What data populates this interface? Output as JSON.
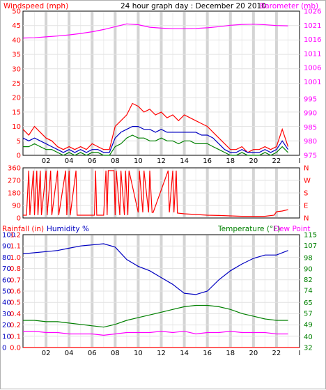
{
  "colors": {
    "background": "#ffffff",
    "plot_bg": "#ffffff",
    "gridline": "#d8d8d8",
    "axis": "#000000",
    "wind_red": "#ff0000",
    "wind_blue": "#0000c0",
    "wind_green": "#008000",
    "barometer": "#ff00ff",
    "direction": "#ff0000",
    "rain": "#ff0000",
    "humidity": "#0000c0",
    "temperature": "#008000",
    "dewpoint": "#ff00ff"
  },
  "panel1": {
    "title": "24 hour graph day : December 20 2010",
    "left_label": "Windspeed (mph)",
    "right_label": "Barometer (mb)"
  },
  "panel3": {
    "left_label_rain": "Rainfall (in)",
    "left_label_humidity": "Humidity %",
    "right_label_temp": "Temperature (°F)",
    "right_label_dew": "Dew Point"
  },
  "chart_data": [
    {
      "type": "line",
      "panel": "wind-barometer",
      "title": "24 hour graph day : December 20 2010",
      "ylabel": "Windspeed (mph)",
      "y2label": "Barometer (mb)",
      "x_ticks": [
        "02",
        "04",
        "06",
        "08",
        "10",
        "12",
        "14",
        "16",
        "18",
        "20",
        "22",
        "I"
      ],
      "y_ticks": [
        0,
        5,
        10,
        15,
        20,
        25,
        30,
        35,
        40,
        45,
        50
      ],
      "y2_ticks": [
        975,
        980,
        985,
        990,
        995,
        1001,
        1006,
        1011,
        1016,
        1021,
        1026
      ],
      "ylim": [
        0,
        50
      ],
      "y2lim": [
        975,
        1026
      ],
      "xlim": [
        0,
        24
      ],
      "grid": true,
      "series": [
        {
          "axis": "left",
          "color": "#ff0000",
          "x": [
            0,
            0.5,
            1,
            1.5,
            2,
            2.5,
            3,
            3.5,
            4,
            4.5,
            5,
            5.5,
            6,
            6.5,
            7,
            7.5,
            8,
            8.5,
            9,
            9.5,
            10,
            10.5,
            11,
            11.5,
            12,
            12.5,
            13,
            13.5,
            14,
            14.5,
            15,
            15.5,
            16,
            16.5,
            17,
            17.5,
            18,
            18.5,
            19,
            19.5,
            20,
            20.5,
            21,
            21.5,
            22,
            22.5,
            23
          ],
          "values": [
            9,
            7,
            10,
            8,
            6,
            5,
            3,
            2,
            3,
            2,
            3,
            2,
            4,
            3,
            2,
            2,
            10,
            12,
            14,
            18,
            17,
            15,
            16,
            14,
            15,
            13,
            14,
            12,
            14,
            13,
            12,
            11,
            10,
            8,
            6,
            4,
            2,
            2,
            3,
            1,
            2,
            2,
            3,
            2,
            3,
            9,
            3
          ]
        },
        {
          "axis": "left",
          "color": "#0000c0",
          "x": [
            0,
            0.5,
            1,
            1.5,
            2,
            2.5,
            3,
            3.5,
            4,
            4.5,
            5,
            5.5,
            6,
            6.5,
            7,
            7.5,
            8,
            8.5,
            9,
            9.5,
            10,
            10.5,
            11,
            11.5,
            12,
            12.5,
            13,
            13.5,
            14,
            14.5,
            15,
            15.5,
            16,
            16.5,
            17,
            17.5,
            18,
            18.5,
            19,
            19.5,
            20,
            20.5,
            21,
            21.5,
            22,
            22.5,
            23
          ],
          "values": [
            6,
            5,
            6,
            5,
            4,
            3,
            2,
            1,
            2,
            1,
            2,
            1,
            2,
            2,
            1,
            1,
            6,
            8,
            9,
            10,
            10,
            9,
            9,
            8,
            9,
            8,
            8,
            8,
            8,
            8,
            8,
            7,
            7,
            6,
            4,
            2,
            1,
            1,
            2,
            1,
            1,
            1,
            2,
            1,
            2,
            5,
            2
          ]
        },
        {
          "axis": "left",
          "color": "#008000",
          "x": [
            0,
            0.5,
            1,
            1.5,
            2,
            2.5,
            3,
            3.5,
            4,
            4.5,
            5,
            5.5,
            6,
            6.5,
            7,
            7.5,
            8,
            8.5,
            9,
            9.5,
            10,
            10.5,
            11,
            11.5,
            12,
            12.5,
            13,
            13.5,
            14,
            14.5,
            15,
            15.5,
            16,
            16.5,
            17,
            17.5,
            18,
            18.5,
            19,
            19.5,
            20,
            20.5,
            21,
            21.5,
            22,
            22.5,
            23
          ],
          "values": [
            3,
            3,
            4,
            3,
            2,
            2,
            1,
            0,
            1,
            0,
            1,
            0,
            1,
            1,
            0,
            0,
            3,
            4,
            6,
            7,
            6,
            6,
            5,
            5,
            6,
            5,
            5,
            4,
            5,
            5,
            4,
            4,
            4,
            3,
            2,
            1,
            0,
            0,
            1,
            0,
            0,
            0,
            1,
            0,
            1,
            3,
            1
          ]
        },
        {
          "axis": "right",
          "color": "#ff00ff",
          "x": [
            0,
            1,
            2,
            3,
            4,
            5,
            6,
            7,
            8,
            9,
            10,
            11,
            12,
            13,
            14,
            15,
            16,
            17,
            18,
            19,
            20,
            21,
            22,
            23
          ],
          "values": [
            1016.5,
            1016.6,
            1016.9,
            1017.2,
            1017.6,
            1018.1,
            1018.7,
            1019.5,
            1020.5,
            1021.5,
            1021.2,
            1020.3,
            1020.0,
            1019.8,
            1019.8,
            1019.9,
            1020.1,
            1020.5,
            1021.0,
            1021.3,
            1021.4,
            1021.2,
            1020.9,
            1020.8
          ]
        }
      ]
    },
    {
      "type": "line",
      "panel": "wind-direction",
      "y_ticks": [
        0,
        90,
        180,
        270,
        360
      ],
      "y2_ticks": [
        "N",
        "E",
        "S",
        "W",
        "N"
      ],
      "ylim": [
        0,
        360
      ],
      "xlim": [
        0,
        24
      ],
      "grid": true,
      "series": [
        {
          "color": "#ff0000",
          "x": [
            0,
            0.3,
            0.5,
            0.6,
            0.9,
            1.0,
            1.2,
            1.3,
            1.5,
            1.6,
            2.0,
            2.1,
            2.4,
            2.5,
            3.0,
            3.1,
            3.7,
            3.8,
            4.0,
            4.1,
            4.6,
            4.7,
            6.2,
            6.3,
            6.4,
            7.0,
            7.2,
            7.3,
            7.4,
            7.9,
            8.0,
            8.1,
            8.4,
            8.5,
            8.8,
            8.9,
            9.1,
            9.2,
            10.0,
            10.1,
            10.4,
            10.5,
            10.9,
            11.0,
            11.2,
            11.3,
            12.6,
            12.7,
            13.0,
            13.1,
            13.3,
            13.4,
            14.0,
            15.0,
            16.0,
            17.0,
            18.0,
            19.0,
            20.0,
            21.0,
            21.8,
            22.0,
            22.5,
            23.0
          ],
          "values": [
            20,
            20,
            340,
            20,
            340,
            20,
            340,
            20,
            340,
            20,
            340,
            20,
            340,
            20,
            340,
            20,
            340,
            20,
            340,
            20,
            340,
            20,
            20,
            340,
            20,
            20,
            340,
            20,
            340,
            340,
            20,
            340,
            20,
            340,
            20,
            340,
            20,
            340,
            40,
            340,
            40,
            340,
            40,
            340,
            40,
            40,
            340,
            40,
            340,
            40,
            340,
            35,
            30,
            25,
            20,
            18,
            15,
            12,
            12,
            12,
            20,
            45,
            50,
            60
          ]
        }
      ]
    },
    {
      "type": "line",
      "panel": "humidity-temperature",
      "ylabel": "Rainfall (in) / Humidity %",
      "y2label": "Temperature (°F) / Dew Point",
      "y_ticks_humidity": [
        0,
        10,
        20,
        30,
        40,
        50,
        60,
        70,
        80,
        90,
        100
      ],
      "y_ticks_rain": [
        0.0,
        0.1,
        0.2,
        0.4,
        0.5,
        0.6,
        0.7,
        0.8,
        1.0,
        1.1,
        1.2
      ],
      "y2_ticks": [
        32,
        40,
        49,
        57,
        65,
        74,
        82,
        90,
        98,
        107,
        115
      ],
      "ylim": [
        0,
        100
      ],
      "y2lim": [
        32,
        115
      ],
      "xlim": [
        0,
        24
      ],
      "grid": true,
      "series": [
        {
          "name": "Humidity %",
          "axis": "left",
          "color": "#0000c0",
          "x": [
            0,
            1,
            2,
            3,
            4,
            5,
            6,
            7,
            8,
            9,
            10,
            11,
            12,
            13,
            14,
            15,
            16,
            17,
            18,
            19,
            20,
            21,
            22,
            23
          ],
          "values": [
            83,
            84,
            85,
            86,
            88,
            90,
            91,
            92,
            89,
            78,
            72,
            68,
            62,
            56,
            48,
            47,
            50,
            60,
            68,
            74,
            79,
            82,
            82,
            86
          ]
        },
        {
          "name": "Temperature (°F)",
          "axis": "right",
          "color": "#008000",
          "x": [
            0,
            1,
            2,
            3,
            4,
            5,
            6,
            7,
            8,
            9,
            10,
            11,
            12,
            13,
            14,
            15,
            16,
            17,
            18,
            19,
            20,
            21,
            22,
            23
          ],
          "values": [
            52,
            52,
            51,
            51,
            50,
            49,
            48,
            47,
            49,
            52,
            54,
            56,
            58,
            60,
            62,
            63,
            63,
            62,
            60,
            57,
            55,
            53,
            52,
            52
          ]
        },
        {
          "name": "Dew Point",
          "axis": "right",
          "color": "#ff00ff",
          "x": [
            0,
            1,
            2,
            3,
            4,
            5,
            6,
            7,
            8,
            9,
            10,
            11,
            12,
            13,
            14,
            15,
            16,
            17,
            18,
            19,
            20,
            21,
            22,
            23
          ],
          "values": [
            44,
            44,
            43,
            43,
            42,
            42,
            42,
            41,
            42,
            43,
            43,
            43,
            44,
            43,
            44,
            42,
            43,
            43,
            44,
            43,
            43,
            43,
            42,
            42
          ]
        },
        {
          "name": "Rainfall (in)",
          "axis": "left",
          "color": "#ff0000",
          "x": [
            0,
            24
          ],
          "values": [
            0.0,
            0.0
          ]
        }
      ]
    }
  ]
}
